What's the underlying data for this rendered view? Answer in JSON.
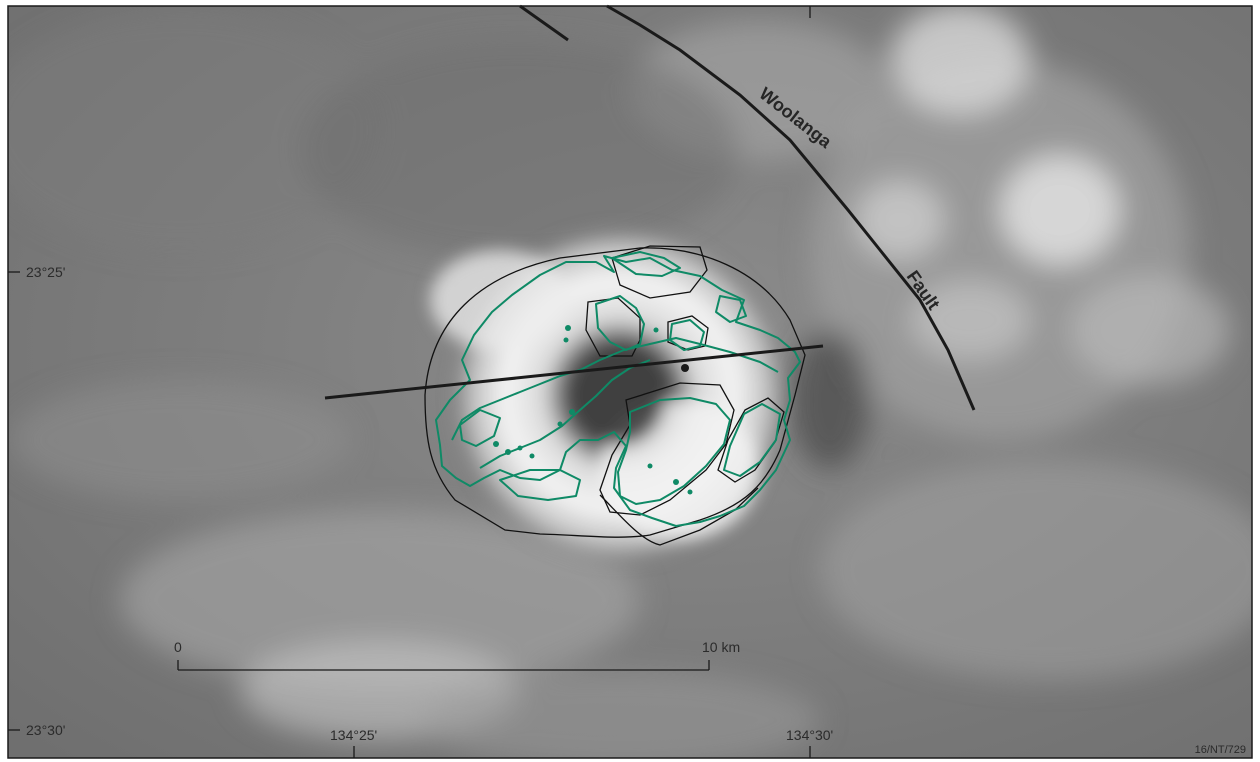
{
  "map": {
    "fault_name_part1": "Woolanga",
    "fault_name_part2": "Fault",
    "lat_labels": [
      "23°25'",
      "23°30'"
    ],
    "lon_labels": [
      "134°25'",
      "134°30'"
    ],
    "scale_bar": {
      "start_label": "0",
      "end_label": "10 km"
    },
    "figure_id": "16/NT/729",
    "colors": {
      "contour": "#0f8a66",
      "geology_outline": "#111111",
      "fault_line": "#1a1a1a",
      "frame": "#1a1a1a"
    }
  }
}
